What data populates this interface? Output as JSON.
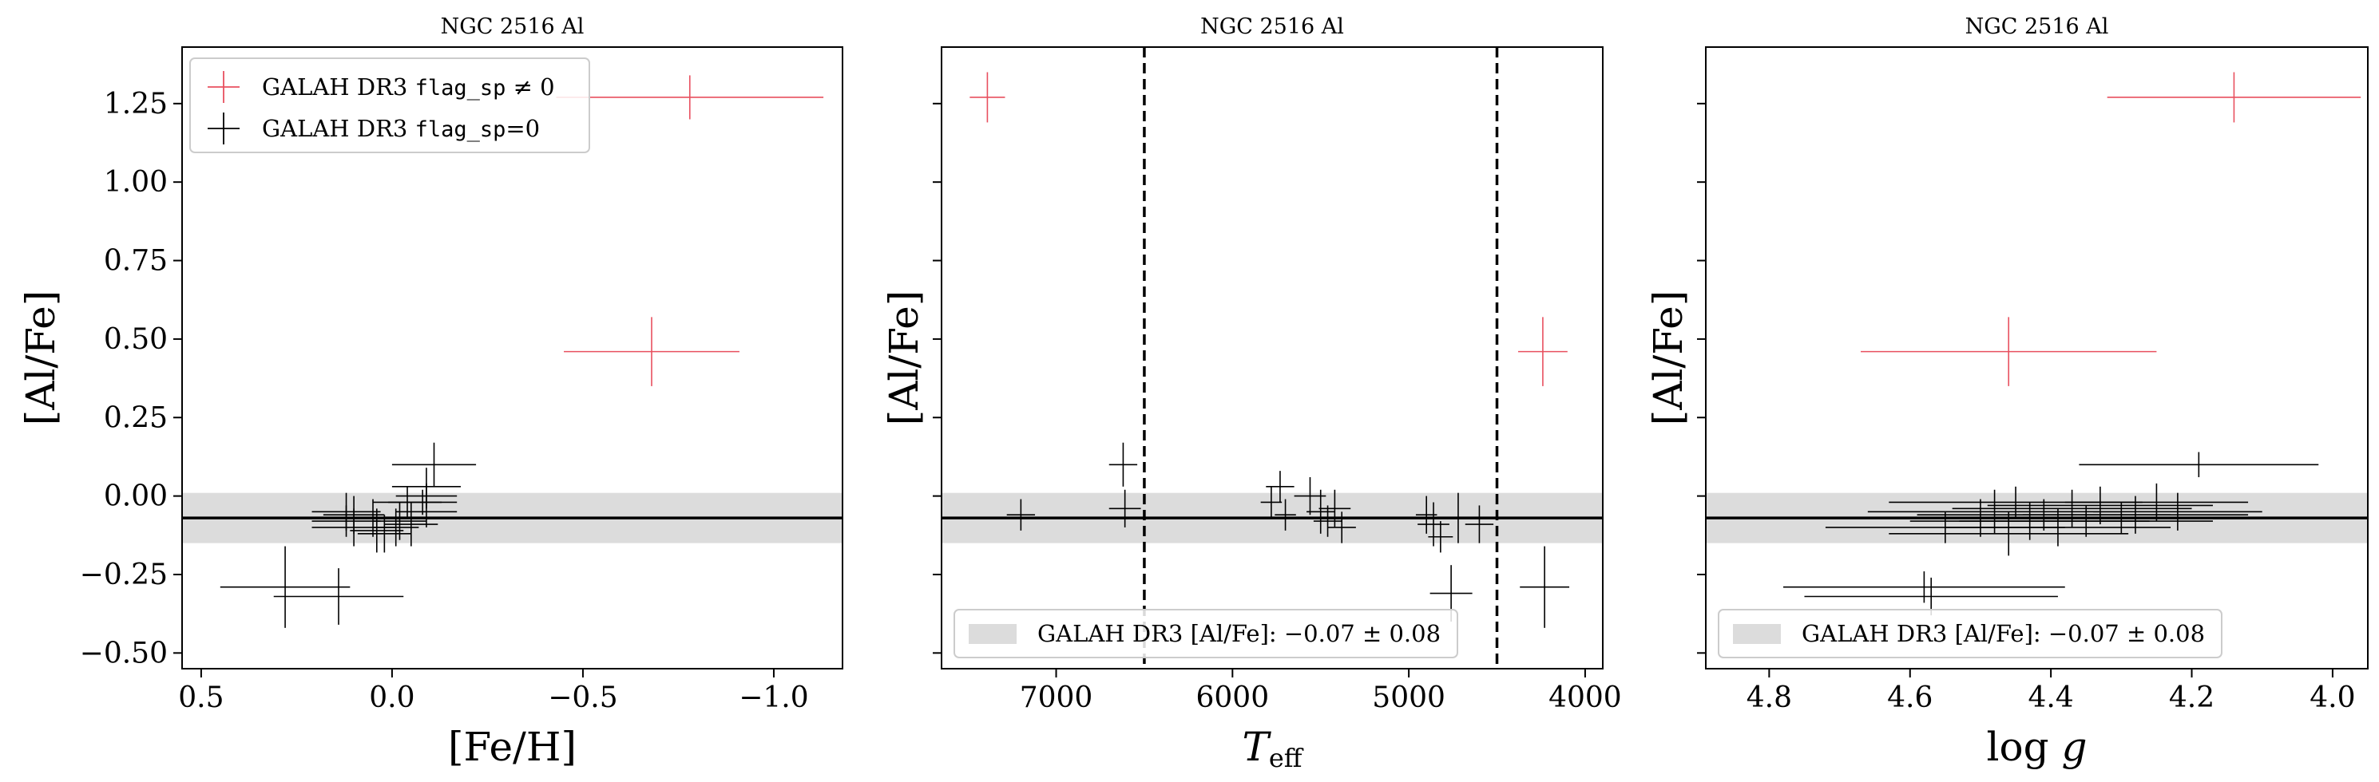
{
  "colors": {
    "flagged": "#e8505f",
    "unflagged": "#000000",
    "band": "#dcdcdc"
  },
  "chart_data": [
    {
      "type": "scatter",
      "title": "NGC 2516 Al",
      "xlabel": "[Fe/H]",
      "ylabel": "[Al/Fe]",
      "xlim": [
        0.55,
        -1.18
      ],
      "ylim": [
        -0.55,
        1.43
      ],
      "x_inverted": true,
      "xticks": [
        0.5,
        0.0,
        -0.5,
        -1.0
      ],
      "xtick_labels": [
        "0.5",
        "0.0",
        "−0.5",
        "−1.0"
      ],
      "yticks": [
        -0.5,
        -0.25,
        0.0,
        0.25,
        0.5,
        0.75,
        1.0,
        1.25
      ],
      "ytick_labels": [
        "−0.50",
        "−0.25",
        "0.00",
        "0.25",
        "0.50",
        "0.75",
        "1.00",
        "1.25"
      ],
      "show_yticklabels": true,
      "reference": {
        "mean": -0.07,
        "std": 0.08
      },
      "legend": {
        "position": "top-left",
        "entries": [
          {
            "label_prefix": "GALAH DR3 ",
            "label_code": "flag_sp",
            "label_suffix": " ≠ 0",
            "color_key": "flagged"
          },
          {
            "label_prefix": "GALAH DR3 ",
            "label_code": "flag_sp",
            "label_suffix": "=0",
            "color_key": "unflagged"
          }
        ]
      },
      "vlines": [],
      "series": [
        {
          "name": "GALAH DR3 flag_sp ≠ 0",
          "color_key": "flagged",
          "points": [
            {
              "x": -0.78,
              "y": 1.27,
              "xerr": 0.35,
              "yerr": 0.07
            },
            {
              "x": -0.68,
              "y": 0.46,
              "xerr": 0.23,
              "yerr": 0.11
            }
          ]
        },
        {
          "name": "GALAH DR3 flag_sp=0",
          "color_key": "unflagged",
          "points": [
            {
              "x": 0.28,
              "y": -0.29,
              "xerr": 0.17,
              "yerr": 0.13
            },
            {
              "x": 0.14,
              "y": -0.32,
              "xerr": 0.17,
              "yerr": 0.09
            },
            {
              "x": -0.11,
              "y": 0.1,
              "xerr": 0.11,
              "yerr": 0.07
            },
            {
              "x": -0.09,
              "y": 0.03,
              "xerr": 0.09,
              "yerr": 0.06
            },
            {
              "x": -0.09,
              "y": 0.0,
              "xerr": 0.08,
              "yerr": 0.04
            },
            {
              "x": -0.08,
              "y": -0.02,
              "xerr": 0.09,
              "yerr": 0.04
            },
            {
              "x": -0.09,
              "y": -0.05,
              "xerr": 0.08,
              "yerr": 0.05
            },
            {
              "x": -0.04,
              "y": -0.02,
              "xerr": 0.09,
              "yerr": 0.05
            },
            {
              "x": 0.12,
              "y": -0.05,
              "xerr": 0.09,
              "yerr": 0.06
            },
            {
              "x": 0.12,
              "y": -0.08,
              "xerr": 0.09,
              "yerr": 0.05
            },
            {
              "x": 0.1,
              "y": -0.1,
              "xerr": 0.11,
              "yerr": 0.06
            },
            {
              "x": 0.05,
              "y": -0.07,
              "xerr": 0.07,
              "yerr": 0.06
            },
            {
              "x": 0.04,
              "y": -0.11,
              "xerr": 0.07,
              "yerr": 0.07
            },
            {
              "x": -0.01,
              "y": -0.1,
              "xerr": 0.06,
              "yerr": 0.06
            },
            {
              "x": -0.02,
              "y": -0.08,
              "xerr": 0.07,
              "yerr": 0.06
            },
            {
              "x": -0.05,
              "y": -0.09,
              "xerr": 0.07,
              "yerr": 0.07
            },
            {
              "x": 0.02,
              "y": -0.12,
              "xerr": 0.07,
              "yerr": 0.06
            },
            {
              "x": 0.1,
              "y": -0.06,
              "xerr": 0.08,
              "yerr": 0.06
            }
          ]
        }
      ]
    },
    {
      "type": "scatter",
      "title": "NGC 2516 Al",
      "xlabel": "T_eff",
      "xlabel_main": "T",
      "xlabel_sub": "eff",
      "ylabel": "[Al/Fe]",
      "xlim": [
        7650,
        3900
      ],
      "ylim": [
        -0.55,
        1.43
      ],
      "x_inverted": true,
      "xticks": [
        7000,
        6000,
        5000,
        4000
      ],
      "xtick_labels": [
        "7000",
        "6000",
        "5000",
        "4000"
      ],
      "yticks": [
        -0.5,
        -0.25,
        0.0,
        0.25,
        0.5,
        0.75,
        1.0,
        1.25
      ],
      "ytick_labels": [],
      "show_yticklabels": false,
      "reference": {
        "mean": -0.07,
        "std": 0.08
      },
      "band_legend": {
        "position": "bottom-left",
        "label": "GALAH DR3 [Al/Fe]: −0.07 ± 0.08"
      },
      "vlines": [
        6500,
        4500
      ],
      "series": [
        {
          "name": "GALAH DR3 flag_sp ≠ 0",
          "color_key": "flagged",
          "points": [
            {
              "x": 7390,
              "y": 1.27,
              "xerr": 100,
              "yerr": 0.08
            },
            {
              "x": 4240,
              "y": 0.46,
              "xerr": 140,
              "yerr": 0.11
            }
          ]
        },
        {
          "name": "GALAH DR3 flag_sp=0",
          "color_key": "unflagged",
          "points": [
            {
              "x": 7200,
              "y": -0.06,
              "xerr": 80,
              "yerr": 0.05
            },
            {
              "x": 6620,
              "y": 0.1,
              "xerr": 80,
              "yerr": 0.07
            },
            {
              "x": 6610,
              "y": -0.04,
              "xerr": 90,
              "yerr": 0.06
            },
            {
              "x": 5780,
              "y": -0.02,
              "xerr": 60,
              "yerr": 0.05
            },
            {
              "x": 5730,
              "y": 0.03,
              "xerr": 80,
              "yerr": 0.05
            },
            {
              "x": 5700,
              "y": -0.06,
              "xerr": 60,
              "yerr": 0.05
            },
            {
              "x": 5560,
              "y": 0.0,
              "xerr": 90,
              "yerr": 0.06
            },
            {
              "x": 5500,
              "y": -0.05,
              "xerr": 80,
              "yerr": 0.07
            },
            {
              "x": 5460,
              "y": -0.08,
              "xerr": 80,
              "yerr": 0.05
            },
            {
              "x": 5420,
              "y": -0.04,
              "xerr": 90,
              "yerr": 0.06
            },
            {
              "x": 5380,
              "y": -0.1,
              "xerr": 80,
              "yerr": 0.05
            },
            {
              "x": 4900,
              "y": -0.06,
              "xerr": 60,
              "yerr": 0.06
            },
            {
              "x": 4860,
              "y": -0.09,
              "xerr": 90,
              "yerr": 0.07
            },
            {
              "x": 4820,
              "y": -0.13,
              "xerr": 70,
              "yerr": 0.05
            },
            {
              "x": 4760,
              "y": -0.31,
              "xerr": 120,
              "yerr": 0.09
            },
            {
              "x": 4720,
              "y": -0.07,
              "xerr": 100,
              "yerr": 0.08
            },
            {
              "x": 4600,
              "y": -0.09,
              "xerr": 80,
              "yerr": 0.06
            },
            {
              "x": 4230,
              "y": -0.29,
              "xerr": 140,
              "yerr": 0.13
            }
          ]
        }
      ]
    },
    {
      "type": "scatter",
      "title": "NGC 2516 Al",
      "xlabel": "log g",
      "xlabel_main": "log ",
      "xlabel_italic": "g",
      "ylabel": "[Al/Fe]",
      "xlim": [
        4.89,
        3.95
      ],
      "ylim": [
        -0.55,
        1.43
      ],
      "x_inverted": true,
      "xticks": [
        4.8,
        4.6,
        4.4,
        4.2,
        4.0
      ],
      "xtick_labels": [
        "4.8",
        "4.6",
        "4.4",
        "4.2",
        "4.0"
      ],
      "yticks": [
        -0.5,
        -0.25,
        0.0,
        0.25,
        0.5,
        0.75,
        1.0,
        1.25
      ],
      "ytick_labels": [],
      "show_yticklabels": false,
      "reference": {
        "mean": -0.07,
        "std": 0.08
      },
      "band_legend": {
        "position": "bottom-left",
        "label": "GALAH DR3 [Al/Fe]: −0.07 ± 0.08"
      },
      "vlines": [],
      "series": [
        {
          "name": "GALAH DR3 flag_sp ≠ 0",
          "color_key": "flagged",
          "points": [
            {
              "x": 4.14,
              "y": 1.27,
              "xerr": 0.18,
              "yerr": 0.08
            },
            {
              "x": 4.46,
              "y": 0.46,
              "xerr": 0.21,
              "yerr": 0.11
            }
          ]
        },
        {
          "name": "GALAH DR3 flag_sp=0",
          "color_key": "unflagged",
          "points": [
            {
              "x": 4.19,
              "y": 0.1,
              "xerr": 0.17,
              "yerr": 0.04
            },
            {
              "x": 4.58,
              "y": -0.29,
              "xerr": 0.2,
              "yerr": 0.05
            },
            {
              "x": 4.57,
              "y": -0.32,
              "xerr": 0.18,
              "yerr": 0.06
            },
            {
              "x": 4.55,
              "y": -0.1,
              "xerr": 0.17,
              "yerr": 0.05
            },
            {
              "x": 4.5,
              "y": -0.07,
              "xerr": 0.19,
              "yerr": 0.06
            },
            {
              "x": 4.48,
              "y": -0.05,
              "xerr": 0.18,
              "yerr": 0.07
            },
            {
              "x": 4.46,
              "y": -0.12,
              "xerr": 0.17,
              "yerr": 0.07
            },
            {
              "x": 4.45,
              "y": -0.02,
              "xerr": 0.18,
              "yerr": 0.05
            },
            {
              "x": 4.43,
              "y": -0.08,
              "xerr": 0.17,
              "yerr": 0.06
            },
            {
              "x": 4.41,
              "y": -0.06,
              "xerr": 0.18,
              "yerr": 0.05
            },
            {
              "x": 4.39,
              "y": -0.1,
              "xerr": 0.16,
              "yerr": 0.06
            },
            {
              "x": 4.37,
              "y": -0.04,
              "xerr": 0.17,
              "yerr": 0.06
            },
            {
              "x": 4.35,
              "y": -0.08,
              "xerr": 0.18,
              "yerr": 0.05
            },
            {
              "x": 4.33,
              "y": -0.03,
              "xerr": 0.16,
              "yerr": 0.06
            },
            {
              "x": 4.3,
              "y": -0.07,
              "xerr": 0.19,
              "yerr": 0.05
            },
            {
              "x": 4.28,
              "y": -0.06,
              "xerr": 0.16,
              "yerr": 0.06
            },
            {
              "x": 4.25,
              "y": -0.02,
              "xerr": 0.13,
              "yerr": 0.06
            },
            {
              "x": 4.22,
              "y": -0.05,
              "xerr": 0.12,
              "yerr": 0.06
            }
          ]
        }
      ]
    }
  ]
}
